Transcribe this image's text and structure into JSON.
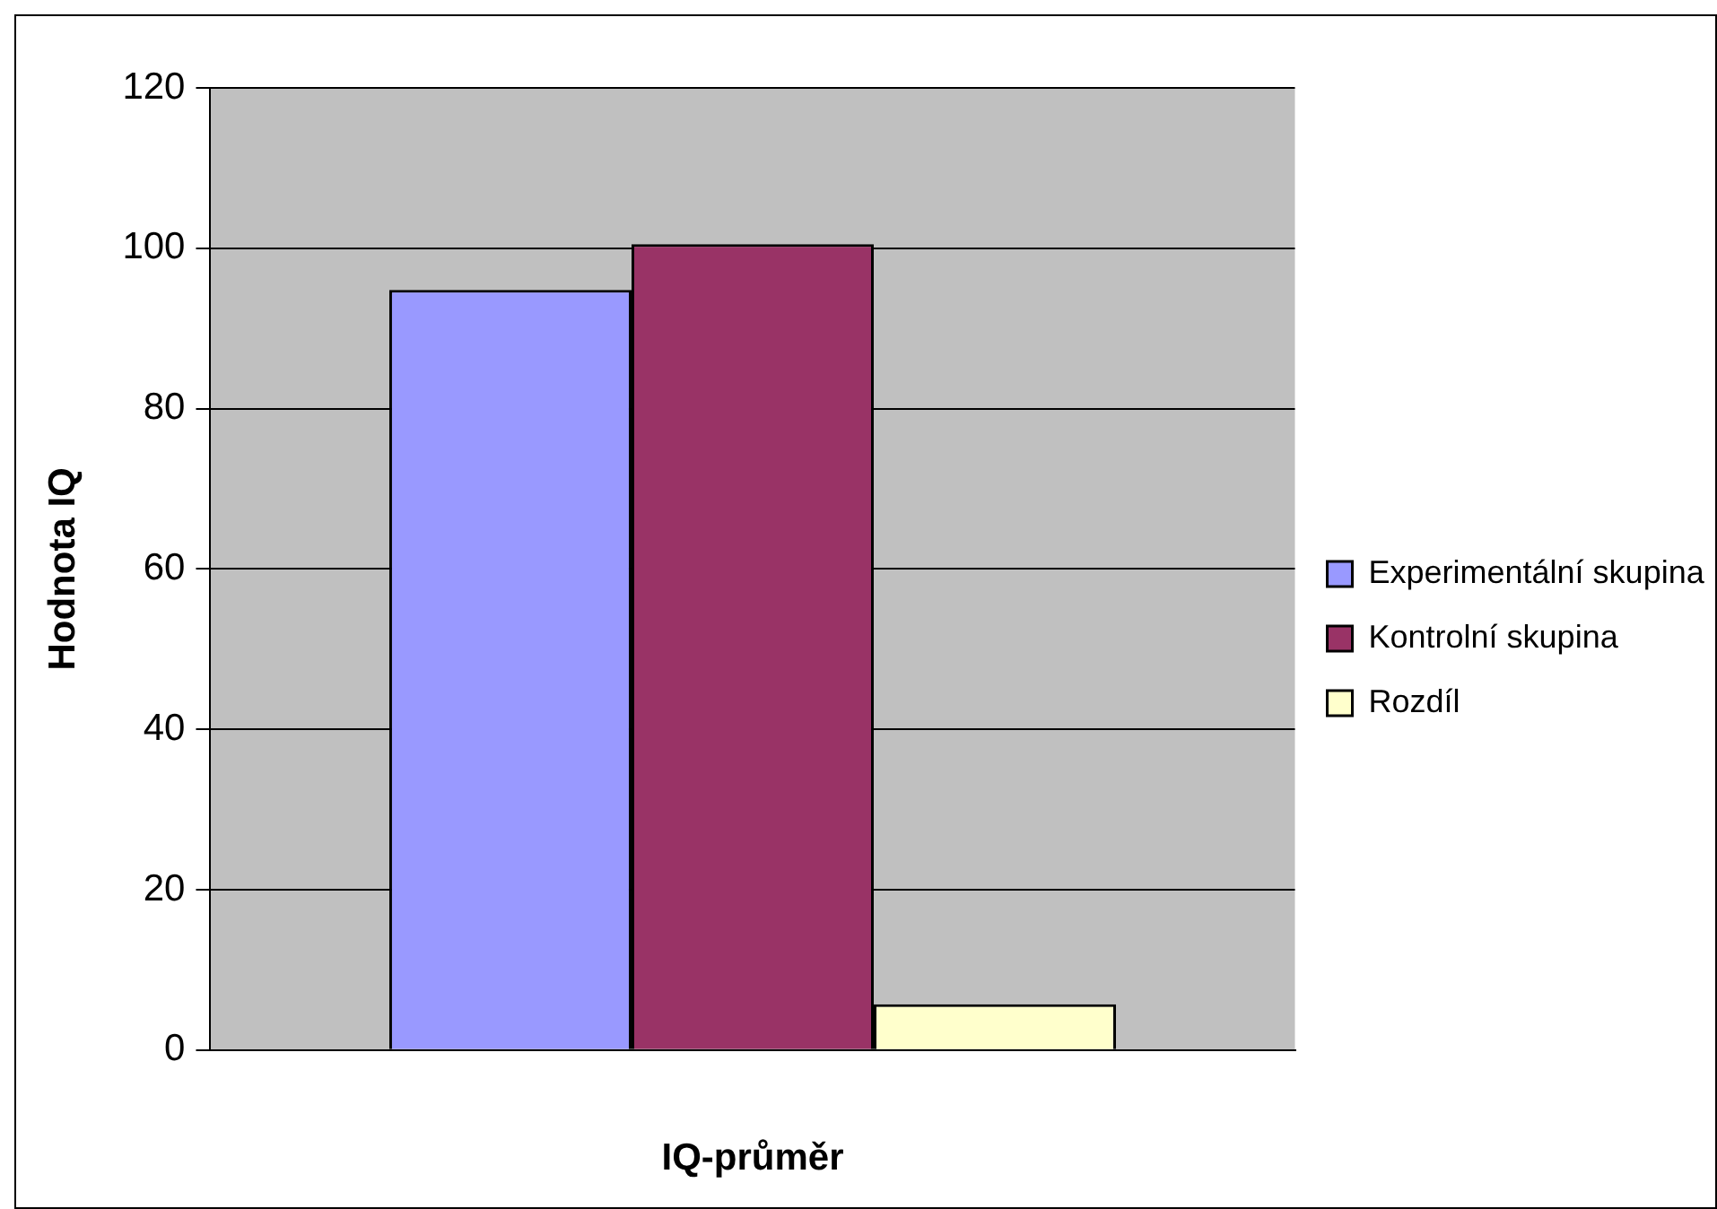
{
  "chart_data": {
    "type": "bar",
    "xlabel": "IQ-průměr",
    "ylabel": "Hodnota IQ",
    "categories": [
      null
    ],
    "series": [
      {
        "name": "Experimentální skupina",
        "color": "#9999ff",
        "values": [
          94.8
        ]
      },
      {
        "name": "Kontrolní skupina",
        "color": "#993366",
        "values": [
          100.5
        ]
      },
      {
        "name": "Rozdíl",
        "color": "#ffffcc",
        "values": [
          5.7
        ]
      }
    ],
    "ylim": [
      0,
      120
    ],
    "yticks": [
      0,
      20,
      40,
      60,
      80,
      100,
      120
    ],
    "grid": "y",
    "legend": "right"
  }
}
